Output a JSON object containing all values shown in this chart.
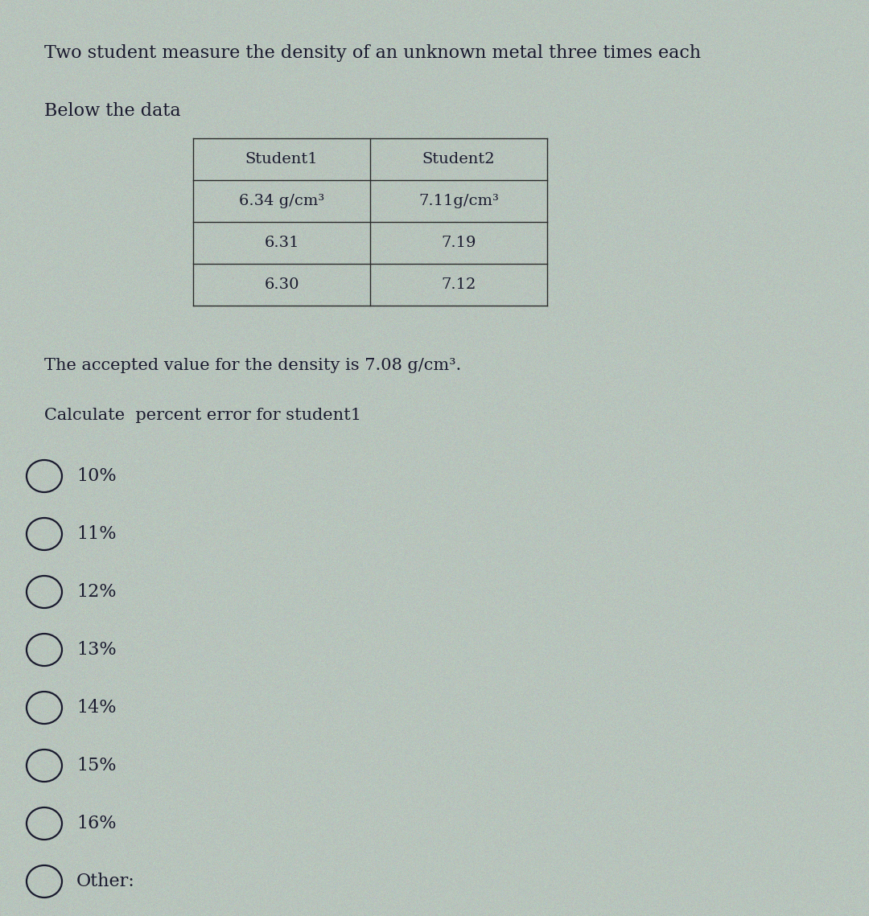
{
  "title_line": "Two student measure the density of an unknown metal three times each",
  "subtitle_line": "Below the data",
  "table_headers": [
    "Student1",
    "Student2"
  ],
  "table_data": [
    [
      "6.34 g/cm³",
      "7.11g/cm³"
    ],
    [
      "6.31",
      "7.19"
    ],
    [
      "6.30",
      "7.12"
    ]
  ],
  "accepted_value_text": "The accepted value for the density is 7.08 g/cm³.",
  "calculate_text": "Calculate  percent error for student1",
  "choices": [
    "10%",
    "11%",
    "12%",
    "13%",
    "14%",
    "15%",
    "16%",
    "Other:"
  ],
  "bg_color": "#b8c4bc",
  "text_color": "#1a1a2e",
  "table_border_color": "#2a2a2a",
  "font_size_title": 16,
  "font_size_body": 15,
  "font_size_table": 14,
  "font_size_choices": 16,
  "fig_width": 10.8,
  "fig_height": 11.39
}
